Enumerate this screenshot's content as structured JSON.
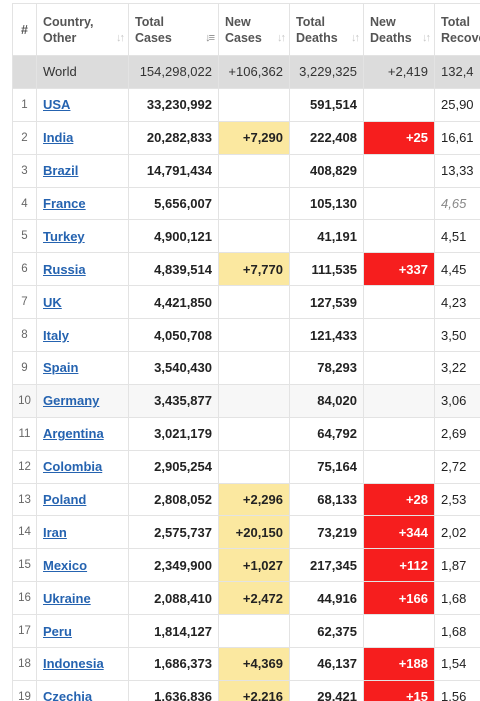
{
  "headers": {
    "num": "#",
    "country": [
      "Country,",
      "Other"
    ],
    "total_cases": [
      "Total",
      "Cases"
    ],
    "new_cases": [
      "New",
      "Cases"
    ],
    "total_deaths": [
      "Total",
      "Deaths"
    ],
    "new_deaths": [
      "New",
      "Deaths"
    ],
    "total_recovered": [
      "Total",
      "Recove"
    ]
  },
  "sort_icon": "sort-arrows-icon",
  "colors": {
    "new_cases_bg": "#fbe8a0",
    "new_deaths_bg": "#f61e1e",
    "link": "#2563b0",
    "world_bg": "#dcdcdc"
  },
  "world": {
    "country": "World",
    "total_cases": "154,298,022",
    "new_cases": "+106,362",
    "total_deaths": "3,229,325",
    "new_deaths": "+2,419",
    "total_recovered": "132,4"
  },
  "rows": [
    {
      "num": "1",
      "country": "USA",
      "total_cases": "33,230,992",
      "new_cases": "",
      "total_deaths": "591,514",
      "new_deaths": "",
      "total_recovered": "25,90"
    },
    {
      "num": "2",
      "country": "India",
      "total_cases": "20,282,833",
      "new_cases": "+7,290",
      "total_deaths": "222,408",
      "new_deaths": "+25",
      "total_recovered": "16,61"
    },
    {
      "num": "3",
      "country": "Brazil",
      "total_cases": "14,791,434",
      "new_cases": "",
      "total_deaths": "408,829",
      "new_deaths": "",
      "total_recovered": "13,33"
    },
    {
      "num": "4",
      "country": "France",
      "total_cases": "5,656,007",
      "new_cases": "",
      "total_deaths": "105,130",
      "new_deaths": "",
      "total_recovered": "4,65"
    },
    {
      "num": "5",
      "country": "Turkey",
      "total_cases": "4,900,121",
      "new_cases": "",
      "total_deaths": "41,191",
      "new_deaths": "",
      "total_recovered": "4,51"
    },
    {
      "num": "6",
      "country": "Russia",
      "total_cases": "4,839,514",
      "new_cases": "+7,770",
      "total_deaths": "111,535",
      "new_deaths": "+337",
      "total_recovered": "4,45"
    },
    {
      "num": "7",
      "country": "UK",
      "total_cases": "4,421,850",
      "new_cases": "",
      "total_deaths": "127,539",
      "new_deaths": "",
      "total_recovered": "4,23"
    },
    {
      "num": "8",
      "country": "Italy",
      "total_cases": "4,050,708",
      "new_cases": "",
      "total_deaths": "121,433",
      "new_deaths": "",
      "total_recovered": "3,50"
    },
    {
      "num": "9",
      "country": "Spain",
      "total_cases": "3,540,430",
      "new_cases": "",
      "total_deaths": "78,293",
      "new_deaths": "",
      "total_recovered": "3,22"
    },
    {
      "num": "10",
      "country": "Germany",
      "total_cases": "3,435,877",
      "new_cases": "",
      "total_deaths": "84,020",
      "new_deaths": "",
      "total_recovered": "3,06"
    },
    {
      "num": "11",
      "country": "Argentina",
      "total_cases": "3,021,179",
      "new_cases": "",
      "total_deaths": "64,792",
      "new_deaths": "",
      "total_recovered": "2,69"
    },
    {
      "num": "12",
      "country": "Colombia",
      "total_cases": "2,905,254",
      "new_cases": "",
      "total_deaths": "75,164",
      "new_deaths": "",
      "total_recovered": "2,72"
    },
    {
      "num": "13",
      "country": "Poland",
      "total_cases": "2,808,052",
      "new_cases": "+2,296",
      "total_deaths": "68,133",
      "new_deaths": "+28",
      "total_recovered": "2,53"
    },
    {
      "num": "14",
      "country": "Iran",
      "total_cases": "2,575,737",
      "new_cases": "+20,150",
      "total_deaths": "73,219",
      "new_deaths": "+344",
      "total_recovered": "2,02"
    },
    {
      "num": "15",
      "country": "Mexico",
      "total_cases": "2,349,900",
      "new_cases": "+1,027",
      "total_deaths": "217,345",
      "new_deaths": "+112",
      "total_recovered": "1,87"
    },
    {
      "num": "16",
      "country": "Ukraine",
      "total_cases": "2,088,410",
      "new_cases": "+2,472",
      "total_deaths": "44,916",
      "new_deaths": "+166",
      "total_recovered": "1,68"
    },
    {
      "num": "17",
      "country": "Peru",
      "total_cases": "1,814,127",
      "new_cases": "",
      "total_deaths": "62,375",
      "new_deaths": "",
      "total_recovered": "1,68"
    },
    {
      "num": "18",
      "country": "Indonesia",
      "total_cases": "1,686,373",
      "new_cases": "+4,369",
      "total_deaths": "46,137",
      "new_deaths": "+188",
      "total_recovered": "1,54"
    },
    {
      "num": "19",
      "country": "Czechia",
      "total_cases": "1,636,836",
      "new_cases": "+2,216",
      "total_deaths": "29,421",
      "new_deaths": "+15",
      "total_recovered": "1,56"
    }
  ]
}
